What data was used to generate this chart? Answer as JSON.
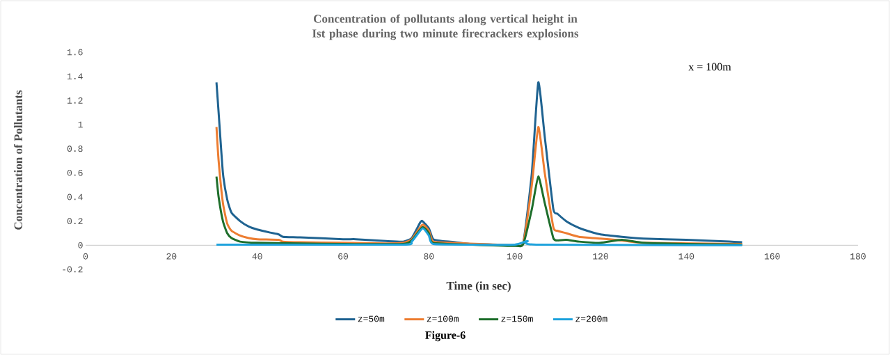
{
  "chart_data": {
    "type": "line",
    "title": "Concentration of pollutants along vertical height in Ist phase during two minute firecrackers explosions",
    "xlabel": "Time (in sec)",
    "ylabel": "Concentration of Pollutants",
    "annotations": [
      "x = 100m",
      "Figure-6"
    ],
    "xlim": [
      0,
      180
    ],
    "xticks": [
      0,
      20,
      40,
      60,
      80,
      100,
      120,
      140,
      160,
      180
    ],
    "ylim": [
      -0.2,
      1.6
    ],
    "yticks": [
      -0.2,
      0,
      0.2,
      0.4,
      0.6,
      0.8,
      1,
      1.2,
      1.4,
      1.6
    ],
    "grid": false,
    "legend": "bottom",
    "marker": "none",
    "line_style": "solid",
    "series": [
      {
        "name": "z=50m",
        "color": "#1f6391",
        "x": [
          30.5,
          31,
          32,
          33,
          34,
          36,
          38,
          40,
          43,
          45,
          46,
          50,
          60,
          63,
          70,
          74,
          76,
          78,
          78.5,
          80,
          81,
          83,
          85,
          90,
          95,
          100,
          102,
          104,
          105.5,
          107,
          109,
          110,
          112,
          114,
          116,
          120,
          125,
          130,
          140,
          150,
          153
        ],
        "values": [
          1.35,
          1.1,
          0.6,
          0.38,
          0.27,
          0.2,
          0.155,
          0.13,
          0.105,
          0.09,
          0.07,
          0.065,
          0.05,
          0.05,
          0.035,
          0.03,
          0.06,
          0.19,
          0.2,
          0.14,
          0.05,
          0.035,
          0.03,
          0.01,
          0.005,
          0,
          0.02,
          0.6,
          1.35,
          0.9,
          0.3,
          0.26,
          0.2,
          0.16,
          0.13,
          0.09,
          0.07,
          0.055,
          0.045,
          0.03,
          0.025
        ]
      },
      {
        "name": "z=100m",
        "color": "#ed7d31",
        "x": [
          30.5,
          31,
          32,
          33,
          34,
          36,
          38,
          40,
          45,
          46,
          50,
          60,
          70,
          74,
          76,
          78.5,
          80,
          81,
          85,
          90,
          100,
          102,
          104,
          105.5,
          107,
          109,
          110,
          112,
          115,
          120,
          125,
          130,
          140,
          153
        ],
        "values": [
          0.98,
          0.7,
          0.35,
          0.18,
          0.12,
          0.08,
          0.06,
          0.05,
          0.045,
          0.03,
          0.025,
          0.02,
          0.015,
          0.02,
          0.05,
          0.17,
          0.12,
          0.03,
          0.02,
          null,
          0,
          0.02,
          0.5,
          0.98,
          0.6,
          0.15,
          0.12,
          0.1,
          0.07,
          0.055,
          0.04,
          0.02,
          null,
          0.01
        ]
      },
      {
        "name": "z=150m",
        "color": "#1e6e2b",
        "x": [
          30.5,
          31,
          32,
          33,
          34,
          36,
          40,
          50,
          60,
          74,
          76,
          78.5,
          80,
          81,
          90,
          100,
          102,
          104,
          105.5,
          107,
          109,
          110,
          112,
          115,
          120,
          125,
          130,
          140,
          153
        ],
        "values": [
          0.57,
          0.4,
          0.2,
          0.1,
          0.06,
          0.03,
          0.02,
          0.015,
          0.01,
          0.01,
          0.04,
          0.15,
          0.1,
          0.02,
          0.005,
          -0.005,
          0.01,
          0.3,
          0.57,
          0.35,
          0.06,
          0.04,
          0.045,
          0.03,
          0.02,
          0.045,
          0.02,
          0.01,
          0.005
        ]
      },
      {
        "name": "z=200m",
        "color": "#1ea2dc",
        "x": [
          30.5,
          40,
          74,
          76,
          78.5,
          80,
          81,
          90,
          100,
          103,
          105,
          153
        ],
        "values": [
          0.005,
          0.005,
          0.005,
          0.03,
          0.14,
          0.08,
          0.01,
          0.005,
          0.005,
          0.035,
          0.005,
          0
        ]
      }
    ]
  }
}
